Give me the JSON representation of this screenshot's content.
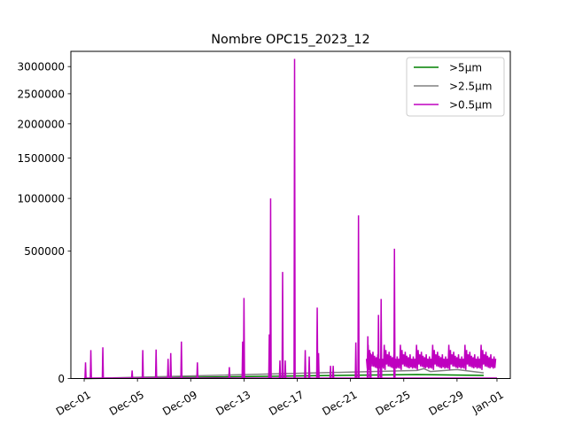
{
  "chart_data": {
    "type": "line",
    "title": "Nombre OPC15_2023_12",
    "xlabel": "",
    "ylabel": "",
    "y_scale": "sqrt",
    "ylim": [
      0,
      3300000
    ],
    "xlim": [
      "2023-11-30",
      "2024-01-02"
    ],
    "y_ticks": [
      0,
      500000,
      1000000,
      1500000,
      2000000,
      2500000,
      3000000
    ],
    "y_tick_labels": [
      "0",
      "500000",
      "1000000",
      "1500000",
      "2000000",
      "2500000",
      "3000000"
    ],
    "x_ticks": [
      "2023-12-01",
      "2023-12-05",
      "2023-12-09",
      "2023-12-13",
      "2023-12-17",
      "2023-12-21",
      "2023-12-25",
      "2023-12-29",
      "2024-01-01"
    ],
    "x_tick_labels": [
      "Dec-01",
      "Dec-05",
      "Dec-09",
      "Dec-13",
      "Dec-17",
      "Dec-21",
      "Dec-25",
      "Dec-29",
      "Jan-01"
    ],
    "legend_position": "top-right",
    "series": [
      {
        "name": ">5µm",
        "color": "#008000",
        "points": [
          [
            "2023-12-01",
            0
          ],
          [
            "2023-12-26",
            500
          ],
          [
            "2023-12-31",
            300
          ]
        ]
      },
      {
        "name": ">2.5µm",
        "color": "#808080",
        "points": [
          [
            "2023-12-01",
            0
          ],
          [
            "2023-12-26",
            2000
          ],
          [
            "2023-12-26.5",
            3000
          ],
          [
            "2023-12-27",
            1500
          ],
          [
            "2023-12-29",
            2500
          ],
          [
            "2023-12-31",
            1000
          ]
        ]
      },
      {
        "name": ">0.5µm",
        "color": "#bf00bf",
        "spikes": [
          [
            "2023-12-01.1",
            8000
          ],
          [
            "2023-12-01.5",
            25000
          ],
          [
            "2023-12-02.4",
            30000
          ],
          [
            "2023-12-04.6",
            2000
          ],
          [
            "2023-12-05.4",
            25000
          ],
          [
            "2023-12-06.4",
            26000
          ],
          [
            "2023-12-07.3",
            12000
          ],
          [
            "2023-12-07.5",
            20000
          ],
          [
            "2023-12-08.3",
            42000
          ],
          [
            "2023-12-09.5",
            8000
          ],
          [
            "2023-12-11.9",
            4000
          ],
          [
            "2023-12-12.9",
            42000
          ],
          [
            "2023-12-13.0",
            200000
          ],
          [
            "2023-12-14.9",
            60000
          ],
          [
            "2023-12-15.0",
            1000000
          ],
          [
            "2023-12-15.7",
            10000
          ],
          [
            "2023-12-15.9",
            350000
          ],
          [
            "2023-12-16.1",
            10000
          ],
          [
            "2023-12-16.8",
            3150000
          ],
          [
            "2023-12-17.6",
            25000
          ],
          [
            "2023-12-17.9",
            15000
          ],
          [
            "2023-12-18.5",
            155000
          ],
          [
            "2023-12-18.6",
            20000
          ],
          [
            "2023-12-19.5",
            5000
          ],
          [
            "2023-12-19.7",
            5000
          ],
          [
            "2023-12-21.4",
            40000
          ],
          [
            "2023-12-21.6",
            820000
          ],
          [
            "2023-12-22.3",
            55000
          ],
          [
            "2023-12-22.5",
            20000
          ],
          [
            "2023-12-23.1",
            125000
          ],
          [
            "2023-12-23.3",
            195000
          ],
          [
            "2023-12-24.3",
            520000
          ]
        ],
        "band": {
          "from": "2023-12-22.2",
          "to": "2023-12-31.9",
          "peaks": [
            12000,
            20000,
            35000,
            15000,
            25000,
            40000,
            18000,
            30000,
            22000,
            28000,
            16000,
            24000,
            14000,
            21000,
            18000,
            26000,
            12000,
            20000,
            15000,
            23000
          ]
        }
      }
    ]
  }
}
